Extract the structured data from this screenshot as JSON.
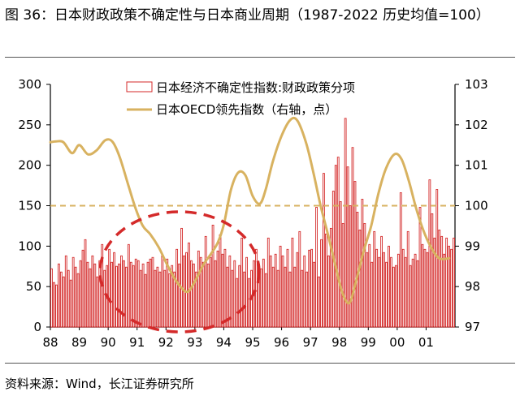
{
  "title": "图 36：日本财政政策不确定性与日本商业周期（1987-2022 历史均值=100）",
  "source": "资料来源：Wind，长江证券研究所",
  "colors": {
    "bar": "#d42a2a",
    "line": "#d8b260",
    "ref": "#d8b260",
    "circle": "#d42a2a"
  },
  "chart_data": {
    "type": "bar+line",
    "x_categories": [
      "88",
      "89",
      "90",
      "91",
      "92",
      "93",
      "94",
      "95",
      "96",
      "97",
      "98",
      "99",
      "00",
      "01"
    ],
    "y_left": {
      "lim": [
        0,
        300
      ],
      "ticks": [
        0,
        50,
        100,
        150,
        200,
        250,
        300
      ]
    },
    "y_right": {
      "lim": [
        97,
        103
      ],
      "ticks": [
        97,
        98,
        99,
        100,
        101,
        102,
        103
      ]
    },
    "reference_line_right": 100,
    "series": [
      {
        "name": "日本经济不确定性指数:财政政策分项",
        "type": "bar",
        "axis": "left",
        "start": "1988-01",
        "frequency": "monthly",
        "values": [
          72,
          55,
          52,
          78,
          68,
          62,
          88,
          70,
          58,
          86,
          74,
          66,
          82,
          95,
          108,
          80,
          72,
          88,
          78,
          62,
          82,
          102,
          70,
          76,
          96,
          80,
          92,
          75,
          78,
          88,
          82,
          74,
          102,
          80,
          76,
          84,
          82,
          70,
          78,
          65,
          80,
          84,
          86,
          70,
          74,
          68,
          88,
          70,
          84,
          66,
          76,
          68,
          96,
          78,
          122,
          88,
          92,
          104,
          82,
          78,
          68,
          94,
          86,
          80,
          112,
          78,
          86,
          126,
          82,
          94,
          114,
          90,
          96,
          74,
          88,
          70,
          82,
          60,
          76,
          110,
          68,
          86,
          60,
          70,
          82,
          96,
          78,
          72,
          84,
          66,
          110,
          88,
          74,
          90,
          70,
          100,
          88,
          74,
          96,
          68,
          110,
          74,
          92,
          118,
          70,
          88,
          68,
          95,
          96,
          80,
          148,
          62,
          108,
          190,
          115,
          88,
          122,
          168,
          200,
          210,
          155,
          128,
          258,
          198,
          150,
          222,
          180,
          142,
          120,
          158,
          128,
          92,
          102,
          80,
          118,
          96,
          86,
          112,
          92,
          80,
          100,
          86,
          74,
          76,
          90,
          166,
          96,
          86,
          118,
          76,
          84,
          90,
          82,
          148,
          102,
          96,
          92,
          182,
          140,
          110,
          170,
          120,
          112,
          90,
          110,
          100,
          96,
          110
        ],
        "label_visible_text": "日本经济不确定性指数:财政政策分项"
      },
      {
        "name": "日本OECD领先指数（右轴，点）",
        "type": "line",
        "axis": "right",
        "points": [
          [
            1988.0,
            101.57
          ],
          [
            1988.2,
            101.59
          ],
          [
            1988.45,
            101.57
          ],
          [
            1988.75,
            101.3
          ],
          [
            1989.0,
            101.5
          ],
          [
            1989.3,
            101.27
          ],
          [
            1989.6,
            101.37
          ],
          [
            1989.9,
            101.62
          ],
          [
            1990.15,
            101.58
          ],
          [
            1990.4,
            101.2
          ],
          [
            1990.7,
            100.5
          ],
          [
            1990.95,
            99.93
          ],
          [
            1991.2,
            99.5
          ],
          [
            1991.45,
            99.3
          ],
          [
            1991.75,
            98.97
          ],
          [
            1992.0,
            98.6
          ],
          [
            1992.3,
            98.2
          ],
          [
            1992.5,
            98.0
          ],
          [
            1992.75,
            97.87
          ],
          [
            1993.0,
            98.13
          ],
          [
            1993.3,
            98.55
          ],
          [
            1993.55,
            98.8
          ],
          [
            1993.8,
            99.1
          ],
          [
            1994.0,
            99.53
          ],
          [
            1994.25,
            100.4
          ],
          [
            1994.5,
            100.82
          ],
          [
            1994.75,
            100.75
          ],
          [
            1995.0,
            100.24
          ],
          [
            1995.25,
            100.05
          ],
          [
            1995.45,
            100.4
          ],
          [
            1995.7,
            101.1
          ],
          [
            1996.0,
            101.73
          ],
          [
            1996.3,
            102.12
          ],
          [
            1996.55,
            102.1
          ],
          [
            1996.85,
            101.55
          ],
          [
            1997.1,
            100.82
          ],
          [
            1997.35,
            100.0
          ],
          [
            1997.6,
            99.3
          ],
          [
            1997.85,
            98.55
          ],
          [
            1998.1,
            97.85
          ],
          [
            1998.35,
            97.6
          ],
          [
            1998.6,
            98.2
          ],
          [
            1998.85,
            98.9
          ],
          [
            1999.1,
            99.5
          ],
          [
            1999.35,
            100.3
          ],
          [
            1999.6,
            100.9
          ],
          [
            1999.9,
            101.27
          ],
          [
            2000.15,
            101.15
          ],
          [
            2000.4,
            100.62
          ],
          [
            2000.65,
            99.95
          ],
          [
            2000.9,
            99.4
          ],
          [
            2001.15,
            99.0
          ],
          [
            2001.45,
            98.7
          ],
          [
            2001.8,
            98.7
          ]
        ],
        "label_visible_text": "日本OECD领先指数（右轴，点）"
      }
    ],
    "annotation": "red dashed ellipse highlighting 1991–1994",
    "legend_position": "top-center"
  }
}
